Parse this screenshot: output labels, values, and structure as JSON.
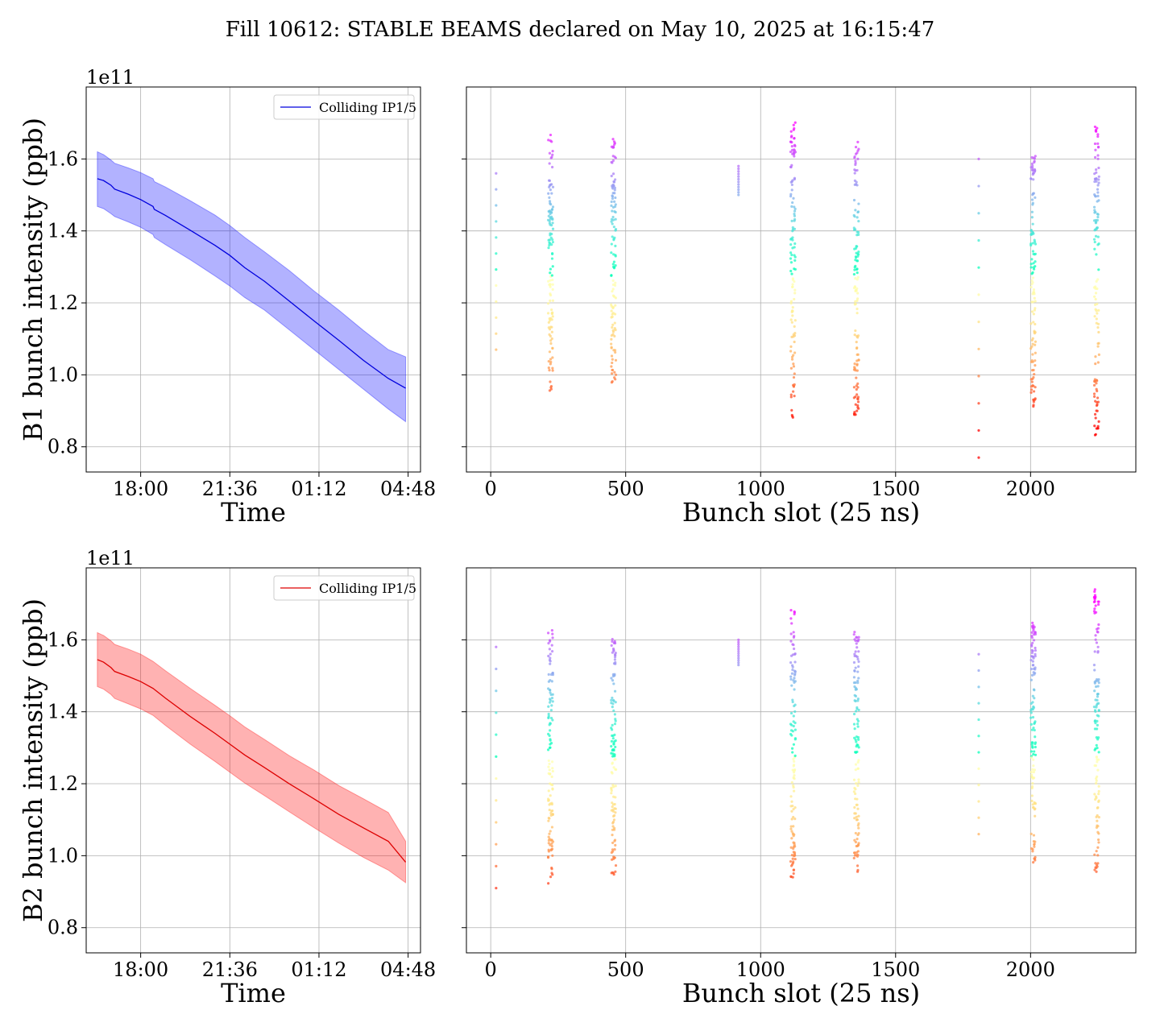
{
  "figure": {
    "title": "Fill 10612: STABLE BEAMS declared on May 10, 2025 at 16:15:47"
  },
  "chart_data": [
    {
      "type": "line",
      "panel": "B1-time",
      "xlabel": "Time",
      "ylabel": "B1 bunch intensity (ppb)",
      "offset_text": "1e11",
      "x_unit": "hours since 18:00",
      "xticks": [
        0,
        3.6,
        7.2,
        10.8
      ],
      "xtick_labels": [
        "18:00",
        "21:36",
        "01:12",
        "04:48"
      ],
      "xlim": [
        -2.2,
        11.3
      ],
      "ylim": [
        0.73,
        1.8
      ],
      "yticks": [
        0.8,
        1.0,
        1.2,
        1.4,
        1.6
      ],
      "ytick_labels": [
        "0.8",
        "1.0",
        "1.2",
        "1.4",
        "1.6"
      ],
      "grid": true,
      "legend": {
        "placement": "upper right",
        "entries": [
          "Colliding IP1/5"
        ]
      },
      "series": [
        {
          "name": "Colliding IP1/5",
          "color": "#0000dd",
          "band_color": "#0000ff",
          "x": [
            -1.75,
            -1.5,
            -1.2,
            -1.05,
            -0.5,
            0,
            0.5,
            0.55,
            1,
            2,
            3,
            3.6,
            4.2,
            5,
            6,
            7,
            8,
            9,
            10,
            10.7
          ],
          "mean": [
            1.545,
            1.54,
            1.527,
            1.516,
            1.502,
            1.487,
            1.468,
            1.46,
            1.443,
            1.402,
            1.36,
            1.332,
            1.298,
            1.26,
            1.205,
            1.15,
            1.096,
            1.04,
            0.99,
            0.963
          ],
          "lower": [
            1.468,
            1.462,
            1.448,
            1.44,
            1.425,
            1.41,
            1.39,
            1.382,
            1.362,
            1.32,
            1.275,
            1.247,
            1.215,
            1.18,
            1.125,
            1.07,
            1.015,
            0.96,
            0.905,
            0.87
          ],
          "upper": [
            1.62,
            1.612,
            1.597,
            1.588,
            1.575,
            1.562,
            1.545,
            1.537,
            1.522,
            1.484,
            1.444,
            1.415,
            1.382,
            1.342,
            1.29,
            1.233,
            1.18,
            1.123,
            1.07,
            1.05
          ]
        }
      ]
    },
    {
      "type": "scatter",
      "panel": "B1-slot",
      "xlabel": "Bunch slot (25 ns)",
      "xticks": [
        0,
        500,
        1000,
        1500,
        2000
      ],
      "xtick_labels": [
        "0",
        "500",
        "1000",
        "1500",
        "2000"
      ],
      "xlim": [
        -90,
        2390
      ],
      "ylim": [
        0.73,
        1.8
      ],
      "yticks": [
        0.8,
        1.0,
        1.2,
        1.4,
        1.6
      ],
      "grid": true,
      "colormap": "rainbow",
      "trains": [
        {
          "slot": 20,
          "min": 1.07,
          "max": 1.56,
          "n": 12
        },
        {
          "slot": 222,
          "min": 0.95,
          "max": 1.67,
          "n": 120
        },
        {
          "slot": 455,
          "min": 0.97,
          "max": 1.66,
          "n": 120
        },
        {
          "slot": 918,
          "min": 1.5,
          "max": 1.58,
          "n": 12
        },
        {
          "slot": 1120,
          "min": 0.88,
          "max": 1.71,
          "n": 120
        },
        {
          "slot": 1355,
          "min": 0.88,
          "max": 1.65,
          "n": 120
        },
        {
          "slot": 1808,
          "min": 0.77,
          "max": 1.6,
          "n": 12
        },
        {
          "slot": 2010,
          "min": 0.91,
          "max": 1.63,
          "n": 120
        },
        {
          "slot": 2245,
          "min": 0.82,
          "max": 1.69,
          "n": 120
        }
      ]
    },
    {
      "type": "line",
      "panel": "B2-time",
      "xlabel": "Time",
      "ylabel": "B2 bunch intensity (ppb)",
      "offset_text": "1e11",
      "x_unit": "hours since 18:00",
      "xticks": [
        0,
        3.6,
        7.2,
        10.8
      ],
      "xtick_labels": [
        "18:00",
        "21:36",
        "01:12",
        "04:48"
      ],
      "xlim": [
        -2.2,
        11.3
      ],
      "ylim": [
        0.73,
        1.8
      ],
      "yticks": [
        0.8,
        1.0,
        1.2,
        1.4,
        1.6
      ],
      "ytick_labels": [
        "0.8",
        "1.0",
        "1.2",
        "1.4",
        "1.6"
      ],
      "grid": true,
      "legend": {
        "placement": "upper right",
        "entries": [
          "Colliding IP1/5"
        ]
      },
      "series": [
        {
          "name": "Colliding IP1/5",
          "color": "#dd0000",
          "band_color": "#ff0000",
          "x": [
            -1.75,
            -1.5,
            -1.2,
            -1.05,
            -0.5,
            0,
            0.5,
            1,
            2,
            3,
            3.6,
            4.2,
            5,
            6,
            7,
            8,
            9,
            10,
            10.7
          ],
          "mean": [
            1.545,
            1.538,
            1.523,
            1.512,
            1.498,
            1.484,
            1.465,
            1.438,
            1.387,
            1.34,
            1.31,
            1.28,
            1.245,
            1.2,
            1.158,
            1.115,
            1.077,
            1.04,
            0.982
          ],
          "lower": [
            1.47,
            1.463,
            1.448,
            1.437,
            1.422,
            1.408,
            1.39,
            1.362,
            1.31,
            1.262,
            1.232,
            1.202,
            1.167,
            1.122,
            1.078,
            1.035,
            0.995,
            0.96,
            0.925
          ],
          "upper": [
            1.62,
            1.612,
            1.597,
            1.587,
            1.574,
            1.56,
            1.54,
            1.514,
            1.465,
            1.418,
            1.389,
            1.358,
            1.323,
            1.278,
            1.238,
            1.195,
            1.158,
            1.12,
            1.04
          ]
        }
      ]
    },
    {
      "type": "scatter",
      "panel": "B2-slot",
      "xlabel": "Bunch slot (25 ns)",
      "xticks": [
        0,
        500,
        1000,
        1500,
        2000
      ],
      "xtick_labels": [
        "0",
        "500",
        "1000",
        "1500",
        "2000"
      ],
      "xlim": [
        -90,
        2390
      ],
      "ylim": [
        0.73,
        1.8
      ],
      "yticks": [
        0.8,
        1.0,
        1.2,
        1.4,
        1.6
      ],
      "grid": true,
      "colormap": "rainbow",
      "trains": [
        {
          "slot": 20,
          "min": 0.91,
          "max": 1.58,
          "n": 12
        },
        {
          "slot": 222,
          "min": 0.92,
          "max": 1.63,
          "n": 120
        },
        {
          "slot": 455,
          "min": 0.94,
          "max": 1.61,
          "n": 120
        },
        {
          "slot": 918,
          "min": 1.53,
          "max": 1.6,
          "n": 12
        },
        {
          "slot": 1120,
          "min": 0.94,
          "max": 1.69,
          "n": 120
        },
        {
          "slot": 1355,
          "min": 0.95,
          "max": 1.63,
          "n": 120
        },
        {
          "slot": 1808,
          "min": 1.06,
          "max": 1.56,
          "n": 12
        },
        {
          "slot": 2010,
          "min": 0.97,
          "max": 1.65,
          "n": 120
        },
        {
          "slot": 2245,
          "min": 0.95,
          "max": 1.74,
          "n": 120
        }
      ]
    }
  ]
}
